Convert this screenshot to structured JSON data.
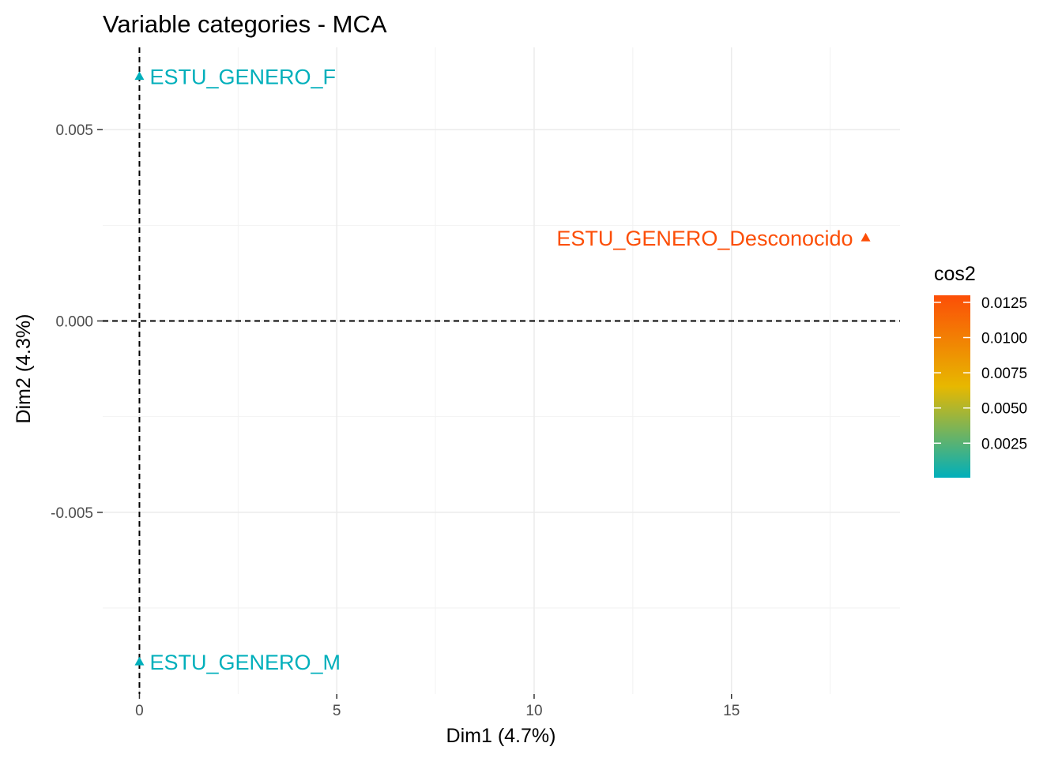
{
  "chart_data": {
    "type": "scatter",
    "title": "Variable categories - MCA",
    "xlabel": "Dim1 (4.7%)",
    "ylabel": "Dim2 (4.3%)",
    "xlim": [
      -0.93,
      19.27
    ],
    "ylim": [
      -0.00975,
      0.00715
    ],
    "x_ticks": [
      0,
      5,
      10,
      15
    ],
    "x_tick_labels": [
      "0",
      "5",
      "10",
      "15"
    ],
    "y_ticks": [
      0.005,
      0.0,
      -0.005
    ],
    "y_tick_labels": [
      "0.005",
      "0.000",
      "-0.005"
    ],
    "x_minor_gridlines": [
      2.5,
      7.5,
      12.5,
      17.5
    ],
    "y_minor_gridlines": [
      0.0025,
      -0.0025,
      -0.0075
    ],
    "grid": true,
    "reference_lines": {
      "x": 0,
      "y": 0,
      "style": "dashed"
    },
    "marker": "triangle",
    "points": [
      {
        "label": "ESTU_GENERO_F",
        "x": 0.0,
        "y": 0.0064,
        "cos2": 5e-05
      },
      {
        "label": "ESTU_GENERO_Desconocido",
        "x": 18.4,
        "y": 0.00218,
        "cos2": 0.013
      },
      {
        "label": "ESTU_GENERO_M",
        "x": 0.0,
        "y": -0.0089,
        "cos2": 5e-05
      }
    ],
    "legend": {
      "title": "cos2",
      "position": "right",
      "ticks": [
        0.0125,
        0.01,
        0.0075,
        0.005,
        0.0025
      ],
      "tick_labels": [
        "0.0125",
        "0.0100",
        "0.0075",
        "0.0050",
        "0.0025"
      ],
      "range": [
        5e-05,
        0.013
      ],
      "gradient_colors": [
        "#00AFBB",
        "#E7B800",
        "#FC4E07"
      ]
    }
  }
}
